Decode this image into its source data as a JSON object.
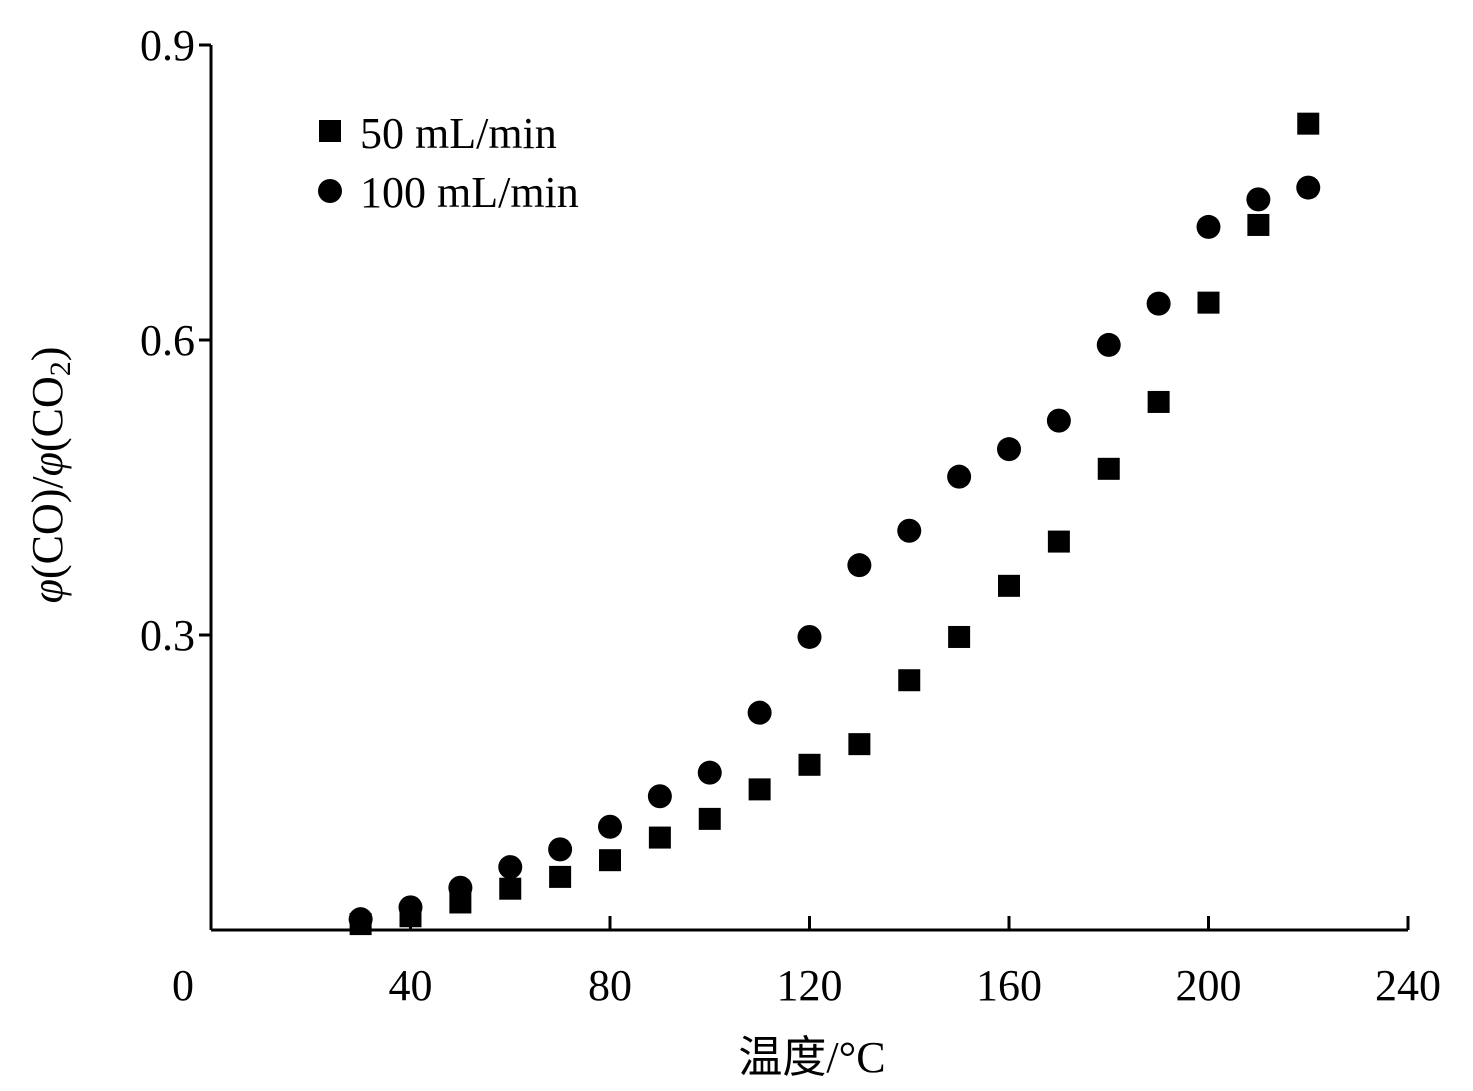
{
  "chart_data": {
    "type": "scatter",
    "xlabel": "温度/°C",
    "ylabel": "φ(CO)/φ(CO2)",
    "ylabel_parts": {
      "a": "φ",
      "b": "(CO)/",
      "c": "φ",
      "d": "(CO",
      "sub": "2",
      "e": ")"
    },
    "xlim": [
      0,
      240
    ],
    "ylim": [
      0,
      0.9
    ],
    "x_ticks": [
      "0",
      "40",
      "80",
      "120",
      "160",
      "200",
      "240"
    ],
    "y_ticks": [
      "0.3",
      "0.6",
      "0.9"
    ],
    "grid": false,
    "legend_position": "top-left",
    "x": [
      30,
      40,
      50,
      60,
      70,
      80,
      90,
      100,
      110,
      120,
      130,
      140,
      150,
      160,
      170,
      180,
      190,
      200,
      210,
      220
    ],
    "series": [
      {
        "name": "50 mL/min",
        "marker": "square",
        "color": "#000000",
        "values": [
          0.006,
          0.014,
          0.028,
          0.042,
          0.054,
          0.071,
          0.094,
          0.113,
          0.143,
          0.168,
          0.189,
          0.254,
          0.298,
          0.35,
          0.395,
          0.469,
          0.537,
          0.638,
          0.717,
          0.82
        ]
      },
      {
        "name": "100 mL/min",
        "marker": "circle",
        "color": "#000000",
        "values": [
          0.011,
          0.023,
          0.043,
          0.064,
          0.082,
          0.105,
          0.136,
          0.16,
          0.221,
          0.298,
          0.371,
          0.406,
          0.461,
          0.489,
          0.518,
          0.595,
          0.637,
          0.715,
          0.743,
          0.755
        ]
      }
    ]
  }
}
